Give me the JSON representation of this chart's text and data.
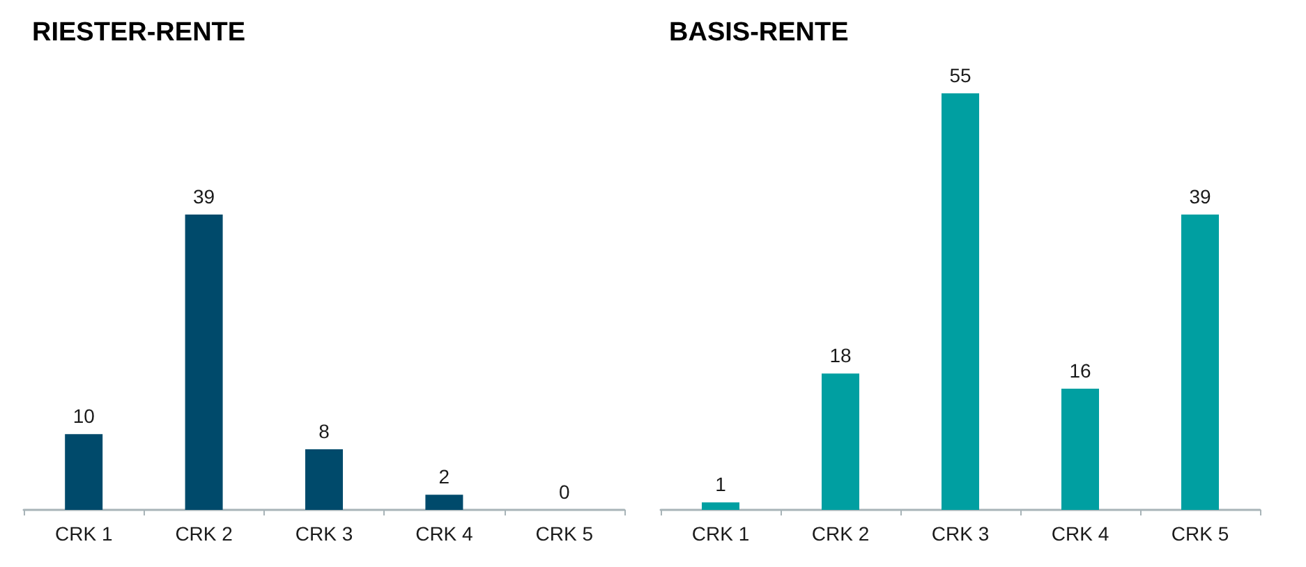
{
  "chart_data": [
    {
      "type": "bar",
      "title": "RIESTER-RENTE",
      "categories": [
        "CRK 1",
        "CRK 2",
        "CRK 3",
        "CRK 4",
        "CRK 5"
      ],
      "values": [
        10,
        39,
        8,
        2,
        0
      ],
      "color": "#004a6b",
      "data_labels": true,
      "tick_labels": "x"
    },
    {
      "type": "bar",
      "title": "BASIS-RENTE",
      "categories": [
        "CRK 1",
        "CRK 2",
        "CRK 3",
        "CRK 4",
        "CRK 5"
      ],
      "values": [
        1,
        18,
        55,
        16,
        39
      ],
      "color": "#009fa1",
      "data_labels": true,
      "tick_labels": "x"
    }
  ]
}
